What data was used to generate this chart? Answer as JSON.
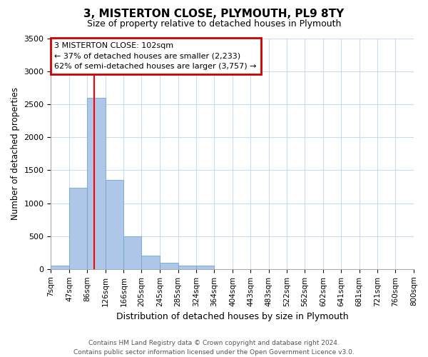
{
  "title": "3, MISTERTON CLOSE, PLYMOUTH, PL9 8TY",
  "subtitle": "Size of property relative to detached houses in Plymouth",
  "xlabel": "Distribution of detached houses by size in Plymouth",
  "ylabel": "Number of detached properties",
  "bin_labels": [
    "7sqm",
    "47sqm",
    "86sqm",
    "126sqm",
    "166sqm",
    "205sqm",
    "245sqm",
    "285sqm",
    "324sqm",
    "364sqm",
    "404sqm",
    "443sqm",
    "483sqm",
    "522sqm",
    "562sqm",
    "602sqm",
    "641sqm",
    "681sqm",
    "721sqm",
    "760sqm",
    "800sqm"
  ],
  "bin_edges": [
    7,
    47,
    86,
    126,
    166,
    205,
    245,
    285,
    324,
    364,
    404,
    443,
    483,
    522,
    562,
    602,
    641,
    681,
    721,
    760,
    800
  ],
  "bar_heights": [
    50,
    1230,
    2600,
    1350,
    500,
    200,
    100,
    50,
    50,
    0,
    0,
    0,
    0,
    0,
    0,
    0,
    0,
    0,
    0,
    0
  ],
  "bar_color": "#aec6e8",
  "bar_edge_color": "#6fa8d0",
  "red_line_x": 102,
  "ylim": [
    0,
    3500
  ],
  "yticks": [
    0,
    500,
    1000,
    1500,
    2000,
    2500,
    3000,
    3500
  ],
  "annotation_title": "3 MISTERTON CLOSE: 102sqm",
  "annotation_line1": "← 37% of detached houses are smaller (2,233)",
  "annotation_line2": "62% of semi-detached houses are larger (3,757) →",
  "annotation_box_color": "#ffffff",
  "annotation_box_edge": "#cc0000",
  "footer_line1": "Contains HM Land Registry data © Crown copyright and database right 2024.",
  "footer_line2": "Contains public sector information licensed under the Open Government Licence v3.0.",
  "background_color": "#ffffff",
  "grid_color": "#c8dced",
  "title_fontsize": 11,
  "subtitle_fontsize": 9,
  "xlabel_fontsize": 9,
  "ylabel_fontsize": 8.5,
  "tick_fontsize": 7.5,
  "annotation_fontsize": 8,
  "footer_fontsize": 6.5
}
